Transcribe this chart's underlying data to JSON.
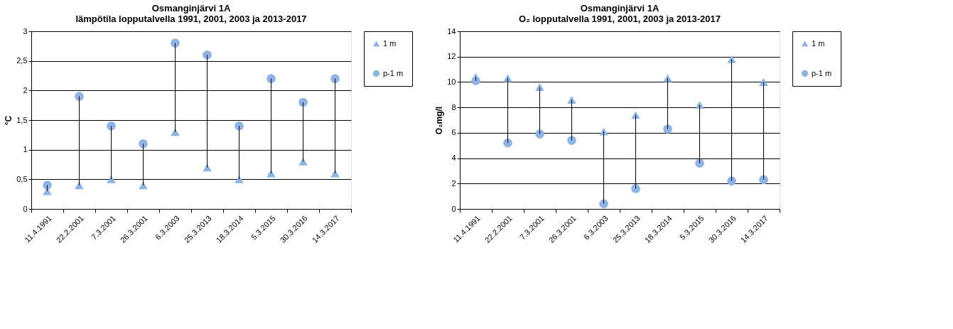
{
  "chart_data": [
    {
      "type": "scatter",
      "title": "Osmanginjärvi 1A",
      "subtitle": "lämpötila lopputalvella 1991, 2001, 2003 ja 2013-2017",
      "ylabel": "°C",
      "categories": [
        "11.4.1991",
        "22.2.2001",
        "7.3.2001",
        "26.3.2001",
        "6.3.2003",
        "25.3.2013",
        "18.3.2014",
        "5.3.2015",
        "30.3.2016",
        "14.3.2017"
      ],
      "series": [
        {
          "name": "1 m",
          "color": "#8eb4e3",
          "marker": "triangle",
          "values": [
            0.3,
            0.4,
            0.5,
            0.4,
            1.3,
            0.7,
            0.5,
            0.6,
            0.8,
            0.6
          ]
        },
        {
          "name": "p-1 m",
          "color": "#8eb4e3",
          "marker": "circle",
          "values": [
            0.4,
            1.9,
            1.4,
            1.1,
            2.8,
            2.6,
            1.4,
            2.2,
            1.8,
            2.2
          ]
        }
      ],
      "ylim": [
        0,
        3
      ],
      "yticks": [
        0,
        {
          "value": 0.5,
          "label": "0,5"
        },
        1,
        {
          "value": 1.5,
          "label": "1,5"
        },
        2,
        {
          "value": 2.5,
          "label": "2,5"
        },
        3
      ],
      "grid": "y",
      "legend": "right"
    },
    {
      "type": "scatter",
      "title": "Osmanginjärvi 1A",
      "subtitle": "O₂ lopputalvella 1991, 2001, 2003 ja 2013-2017",
      "ylabel": "O₂mg/l",
      "categories": [
        "11.4.1991",
        "22.2.2001",
        "7.3.2001",
        "26.3.2001",
        "6.3.2003",
        "25.3.2013",
        "18.3.2014",
        "5.3.2015",
        "30.3.2016",
        "14.3.2017"
      ],
      "series": [
        {
          "name": "1 m",
          "color": "#8eb4e3",
          "marker": "triangle",
          "values": [
            10.4,
            10.3,
            9.6,
            8.6,
            6.1,
            7.4,
            10.3,
            8.2,
            11.8,
            10.0
          ]
        },
        {
          "name": "p-1 m",
          "color": "#8eb4e3",
          "marker": "circle",
          "values": [
            10.1,
            5.2,
            5.9,
            5.4,
            0.4,
            1.6,
            6.3,
            3.6,
            2.2,
            2.3
          ]
        }
      ],
      "ylim": [
        0,
        14
      ],
      "yticks": [
        0,
        2,
        4,
        6,
        8,
        10,
        12,
        14
      ],
      "grid": "y",
      "legend": "right"
    }
  ]
}
